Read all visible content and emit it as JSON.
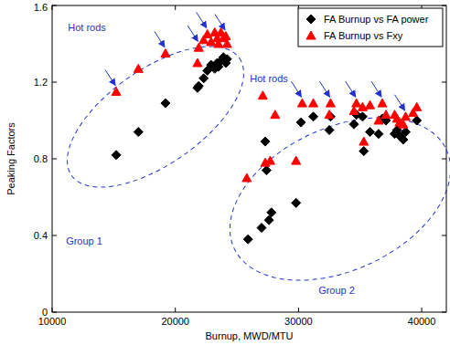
{
  "chart_data": {
    "type": "scatter",
    "x_label": "Burnup, MWD/MTU",
    "y_label": "Peaking Factors",
    "xlim": [
      10000,
      42000
    ],
    "ylim": [
      0,
      1.6
    ],
    "xticks": [
      10000,
      20000,
      30000,
      40000
    ],
    "yticks": [
      0,
      0.4,
      0.8,
      1.2,
      1.6
    ],
    "grid": false,
    "legend": "upper right",
    "annotations": [
      "Hot rods",
      "Hot rods",
      "Group 1",
      "Group 2"
    ],
    "series": [
      {
        "name": "FA Burnup vs FA power",
        "color": "#000000",
        "marker": "diamond",
        "x": [
          15200,
          17000,
          19200,
          21800,
          21900,
          22300,
          22600,
          22900,
          23200,
          23500,
          23700,
          23900,
          24100,
          24200,
          23400,
          25900,
          27000,
          27300,
          27400,
          27600,
          27800,
          29800,
          30200,
          31200,
          32500,
          32600,
          34500,
          34700,
          35200,
          35300,
          35800,
          36500,
          36800,
          37100,
          37800,
          38000,
          38200,
          38500,
          38700,
          39600
        ],
        "values": [
          0.82,
          0.94,
          1.09,
          1.17,
          1.18,
          1.22,
          1.26,
          1.29,
          1.27,
          1.28,
          1.31,
          1.33,
          1.3,
          1.32,
          1.3,
          0.38,
          0.44,
          0.89,
          0.74,
          0.48,
          0.52,
          0.57,
          0.99,
          1.02,
          0.95,
          1.02,
          0.98,
          1.03,
          1.02,
          0.84,
          0.94,
          0.93,
          1.01,
          1.0,
          0.93,
          0.95,
          0.92,
          0.9,
          0.94,
          1.0
        ]
      },
      {
        "name": "FA Burnup vs Fxy",
        "color": "#ff0000",
        "marker": "triangle",
        "x": [
          15200,
          17000,
          19200,
          21800,
          21900,
          22300,
          22600,
          22900,
          23200,
          23500,
          23700,
          23900,
          24100,
          24200,
          23400,
          25800,
          27100,
          27300,
          27700,
          28100,
          29800,
          30300,
          31200,
          32500,
          32600,
          34500,
          34700,
          35200,
          35300,
          35800,
          36500,
          36800,
          37100,
          37800,
          38000,
          38200,
          38500,
          38700,
          39600,
          39300
        ],
        "values": [
          1.15,
          1.27,
          1.35,
          1.3,
          1.38,
          1.42,
          1.45,
          1.41,
          1.46,
          1.4,
          1.46,
          1.43,
          1.44,
          1.4,
          1.43,
          0.7,
          1.13,
          0.78,
          0.79,
          1.03,
          0.79,
          1.09,
          1.09,
          1.03,
          1.09,
          1.05,
          1.09,
          1.07,
          0.89,
          1.08,
          1.0,
          1.09,
          1.03,
          1.03,
          1.01,
          0.99,
          0.98,
          1.02,
          1.07,
          1.04
        ]
      }
    ]
  }
}
